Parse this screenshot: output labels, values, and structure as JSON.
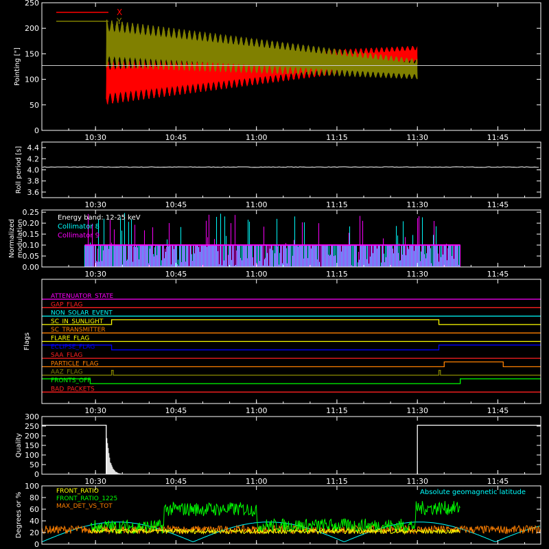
{
  "chart_data": [
    {
      "type": "line",
      "panel": "pointing",
      "ylabel": "Pointing [\"]",
      "ylim": [
        0,
        250
      ],
      "yticks": [
        "0",
        "50",
        "100",
        "150",
        "200",
        "250"
      ],
      "xticks": [
        "10:30",
        "10:45",
        "11:00",
        "11:15",
        "11:30",
        "11:45"
      ],
      "reference_level": 127,
      "series": [
        {
          "name": "X",
          "color": "#ff0000",
          "t_start": "10:32",
          "t_end": "11:30",
          "center_start": 95,
          "center_end": 148,
          "amp_start": 45,
          "amp_end": 18
        },
        {
          "name": "Y",
          "color": "#808000",
          "t_start": "10:32",
          "t_end": "11:30",
          "center_start": 170,
          "center_end": 120,
          "amp_start": 48,
          "amp_end": 20
        }
      ]
    },
    {
      "type": "line",
      "panel": "roll-period",
      "ylabel": "Roll period [s]",
      "ylim": [
        3.5,
        4.5
      ],
      "yticks": [
        "3.6",
        "3.8",
        "4.0",
        "4.2",
        "4.4"
      ],
      "xticks": [
        "10:30",
        "10:45",
        "11:00",
        "11:15",
        "11:30",
        "11:45"
      ],
      "value": 4.05,
      "color": "#ffffff"
    },
    {
      "type": "bar",
      "panel": "modulation",
      "ylabel": "Normalized modulation",
      "ylabel_lines": [
        "Normalized",
        "modulation"
      ],
      "ylim": [
        0,
        0.26
      ],
      "yticks": [
        "0.00",
        "0.05",
        "0.10",
        "0.15",
        "0.20",
        "0.25"
      ],
      "xticks": [
        "10:30",
        "10:45",
        "11:00",
        "11:15",
        "11:30",
        "11:45"
      ],
      "annotation": "Energy band: 12-25 keV",
      "series": [
        {
          "name": "Collimator 8",
          "color": "#00ffff"
        },
        {
          "name": "Collimator 9",
          "color": "#ff00ff"
        }
      ],
      "baseline_level": 0.1,
      "t_start": "10:28",
      "t_end": "11:38"
    },
    {
      "type": "line",
      "panel": "flags",
      "ylabel": "Flags",
      "xticks": [
        "10:30",
        "10:45",
        "11:00",
        "11:15",
        "11:30",
        "11:45"
      ],
      "flags": [
        {
          "name": "ATTENUATOR_STATE",
          "color": "#ff00ff",
          "steps": []
        },
        {
          "name": "GAP_FLAG",
          "color": "#ff2020",
          "steps": []
        },
        {
          "name": "NON_SOLAR_EVENT",
          "color": "#00ffff",
          "steps": []
        },
        {
          "name": "SC_IN_SUNLIGHT",
          "color": "#ffff00",
          "steps": [
            [
              "10:33",
              1
            ],
            [
              "11:34",
              0
            ]
          ]
        },
        {
          "name": "SC_TRANSMITTER",
          "color": "#ff8000",
          "steps": []
        },
        {
          "name": "FLARE_FLAG",
          "color": "#ffff00",
          "steps": []
        },
        {
          "name": "ECLIPSE_FLAG",
          "color": "#0000ff",
          "steps": [
            [
              "10:33",
              0
            ],
            [
              "11:34",
              1
            ]
          ]
        },
        {
          "name": "SAA_FLAG",
          "color": "#ff2020",
          "steps": []
        },
        {
          "name": "PARTICLE_FLAG",
          "color": "#ff8000",
          "steps": [
            [
              "11:35",
              1
            ],
            [
              "11:46",
              0
            ]
          ]
        },
        {
          "name": "AAZ_FLAG",
          "color": "#808000",
          "steps": [
            [
              "10:33",
              1
            ],
            [
              "10:33.3",
              0
            ],
            [
              "11:34",
              1
            ],
            [
              "11:34.3",
              0
            ]
          ]
        },
        {
          "name": "FRONTS_OFF",
          "color": "#00ff00",
          "steps": [
            [
              "10:29",
              0
            ],
            [
              "11:38",
              1
            ]
          ]
        },
        {
          "name": "BAD_PACKETS",
          "color": "#ff2020",
          "steps": []
        }
      ]
    },
    {
      "type": "bar",
      "panel": "quality",
      "ylabel": "Quality",
      "ylim": [
        0,
        300
      ],
      "yticks": [
        "0",
        "50",
        "100",
        "150",
        "200",
        "250",
        "300"
      ],
      "xticks": [
        "10:30",
        "10:45",
        "11:00",
        "11:15",
        "11:30",
        "11:45"
      ],
      "segments": [
        {
          "t_start": "10:20",
          "t_end": "10:32",
          "value": 255
        },
        {
          "t_start": "11:30",
          "t_end": "11:53",
          "value": 255
        }
      ],
      "decay_after": "10:32"
    },
    {
      "type": "line",
      "panel": "ratios",
      "ylabel": "Degrees or %",
      "ylim": [
        0,
        100
      ],
      "yticks": [
        "0",
        "20",
        "40",
        "60",
        "80",
        "100"
      ],
      "xticks": [
        "10:30",
        "10:45",
        "11:00",
        "11:15",
        "11:30",
        "11:45"
      ],
      "legend": "top-left",
      "series": [
        {
          "name": "FRONT_RATIO",
          "color": "#ffff00",
          "level": 25
        },
        {
          "name": "FRONT_RATIO_1225",
          "color": "#00ff00",
          "level": 55
        },
        {
          "name": "MAX_DET_VS_TOT",
          "color": "#ff8000",
          "level": 25
        },
        {
          "name": "Absolute geomagnetic latitude",
          "color": "#00ffff"
        }
      ]
    }
  ]
}
